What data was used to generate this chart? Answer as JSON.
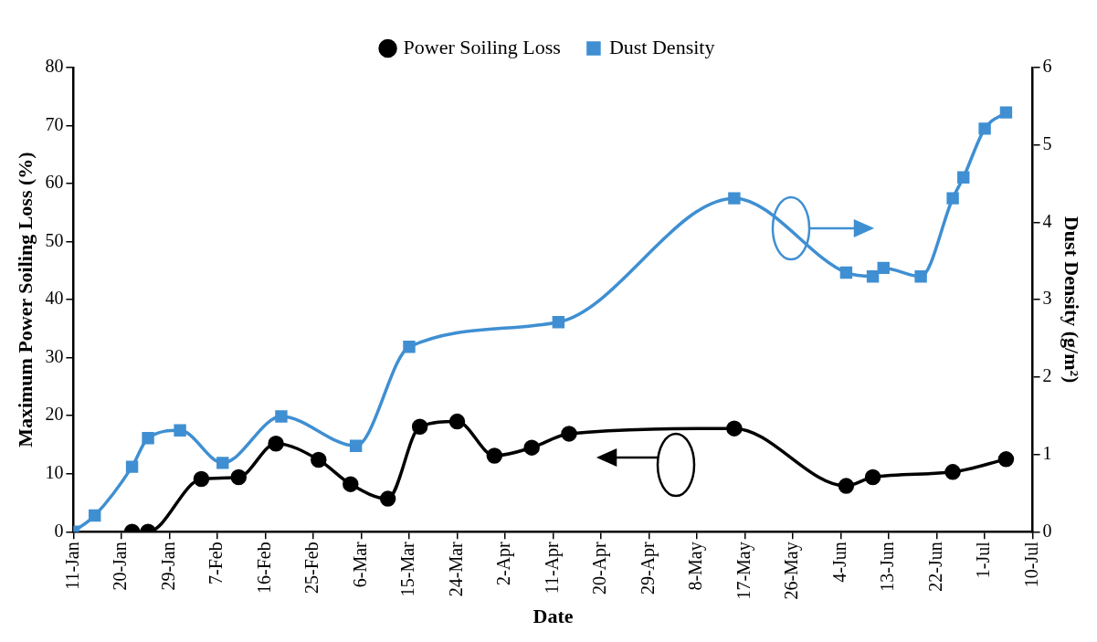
{
  "chart_data": {
    "type": "line",
    "xlabel": "Date",
    "ylabel": "Maximum Power Soiling Loss (%)",
    "y2label": "Dust Density (g/m²)",
    "xlim": [
      "--01-11",
      "--07-10"
    ],
    "xticks": [
      {
        "value": "--01-11",
        "label": "11-Jan"
      },
      {
        "value": "--01-20",
        "label": "20-Jan"
      },
      {
        "value": "--01-29",
        "label": "29-Jan"
      },
      {
        "value": "--02-07",
        "label": "7-Feb"
      },
      {
        "value": "--02-16",
        "label": "16-Feb"
      },
      {
        "value": "--02-25",
        "label": "25-Feb"
      },
      {
        "value": "--03-06",
        "label": "6-Mar"
      },
      {
        "value": "--03-15",
        "label": "15-Mar"
      },
      {
        "value": "--03-24",
        "label": "24-Mar"
      },
      {
        "value": "--04-02",
        "label": "2-Apr"
      },
      {
        "value": "--04-11",
        "label": "11-Apr"
      },
      {
        "value": "--04-20",
        "label": "20-Apr"
      },
      {
        "value": "--04-29",
        "label": "29-Apr"
      },
      {
        "value": "--05-08",
        "label": "8-May"
      },
      {
        "value": "--05-17",
        "label": "17-May"
      },
      {
        "value": "--05-26",
        "label": "26-May"
      },
      {
        "value": "--06-04",
        "label": "4-Jun"
      },
      {
        "value": "--06-13",
        "label": "13-Jun"
      },
      {
        "value": "--06-22",
        "label": "22-Jun"
      },
      {
        "value": "--07-01",
        "label": "1-Jul"
      },
      {
        "value": "--07-10",
        "label": "10-Jul"
      }
    ],
    "ylim": [
      0,
      80
    ],
    "yticks": [
      0,
      10,
      20,
      30,
      40,
      50,
      60,
      70,
      80
    ],
    "y2lim": [
      0,
      6
    ],
    "y2ticks": [
      0,
      1,
      2,
      3,
      4,
      5,
      6
    ],
    "grid": false,
    "legend": "top",
    "series": [
      {
        "name": "Power Soiling Loss",
        "color": "#000000",
        "marker": "circle",
        "x": [
          "--01-22",
          "--01-25",
          "--02-04",
          "--02-11",
          "--02-18",
          "--02-26",
          "--03-04",
          "--03-11",
          "--03-17",
          "--03-24",
          "--03-31",
          "--04-07",
          "--04-14",
          "--05-15",
          "--06-05",
          "--06-10",
          "--06-25",
          "--07-05"
        ],
        "values": [
          0,
          0,
          9.1,
          9.4,
          15.2,
          12.4,
          8.2,
          5.7,
          18.1,
          19,
          13.1,
          14.5,
          16.9,
          17.8,
          7.9,
          9.4,
          10.3,
          12.5
        ]
      },
      {
        "name": "Dust Density",
        "color": "#3f8fd2",
        "marker": "square",
        "axis": "y2",
        "x": [
          "--01-11",
          "--01-15",
          "--01-22",
          "--01-25",
          "--01-31",
          "--02-08",
          "--02-19",
          "--03-05",
          "--03-15",
          "--04-12",
          "--05-15",
          "--06-05",
          "--06-10",
          "--06-12",
          "--06-19",
          "--06-25",
          "--06-27",
          "--07-01",
          "--07-05"
        ],
        "values": [
          0,
          0.21,
          0.84,
          1.21,
          1.31,
          0.89,
          1.49,
          1.11,
          2.39,
          2.71,
          4.31,
          3.35,
          3.3,
          3.41,
          3.3,
          4.31,
          4.58,
          5.21,
          5.42
        ]
      }
    ]
  }
}
